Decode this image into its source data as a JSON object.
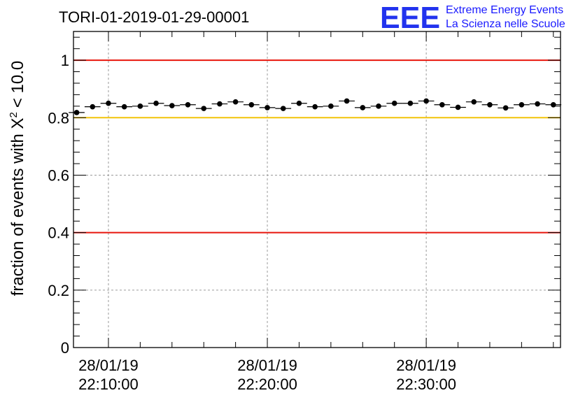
{
  "header": {
    "title": "TORI-01-2019-01-29-00001",
    "logo_text": "EEE",
    "logo_line1": "Extreme Energy Events",
    "logo_line2": "La Scienza nelle Scuole"
  },
  "colors": {
    "threshold_low": "#e8150c",
    "threshold_mid": "#f2c40a",
    "threshold_high": "#e8150c",
    "marker": "#000000",
    "grid": "#9a9a9a",
    "logo": "#2233ee"
  },
  "chart_data": {
    "type": "scatter",
    "title": "TORI-01-2019-01-29-00001",
    "xlabel": "",
    "ylabel": "fraction of events with X",
    "ylabel_sup": "2",
    "ylabel_suffix": "< 10.0",
    "ylim": [
      0,
      1.1
    ],
    "yticks": [
      {
        "value": 0,
        "label": "0"
      },
      {
        "value": 0.2,
        "label": "0.2"
      },
      {
        "value": 0.4,
        "label": "0.4"
      },
      {
        "value": 0.6,
        "label": "0.6"
      },
      {
        "value": 0.8,
        "label": "0.8"
      },
      {
        "value": 1.0,
        "label": "1"
      }
    ],
    "xlim_minutes": [
      7.8,
      38.45
    ],
    "xticks": [
      {
        "minute": 10,
        "date": "28/01/19",
        "time": "22:10:00"
      },
      {
        "minute": 20,
        "date": "28/01/19",
        "time": "22:20:00"
      },
      {
        "minute": 30,
        "date": "28/01/19",
        "time": "22:30:00"
      }
    ],
    "minor_xticks_minutes": [
      12,
      14,
      16,
      18,
      22,
      24,
      26,
      28,
      32,
      34,
      36,
      38
    ],
    "bin_width_minutes": 1.0,
    "reference_lines": [
      {
        "y": 1.0,
        "color_key": "threshold_high"
      },
      {
        "y": 0.8,
        "color_key": "threshold_mid"
      },
      {
        "y": 0.4,
        "color_key": "threshold_low"
      }
    ],
    "x_minutes": [
      8.0,
      9.0,
      10.0,
      11.0,
      12.0,
      13.0,
      14.0,
      15.0,
      16.0,
      17.0,
      18.0,
      19.0,
      20.0,
      21.0,
      22.0,
      23.0,
      24.0,
      25.0,
      26.0,
      27.0,
      28.0,
      29.0,
      30.0,
      31.0,
      32.0,
      33.0,
      34.0,
      35.0,
      36.0,
      37.0,
      38.0
    ],
    "values": [
      0.818,
      0.838,
      0.85,
      0.838,
      0.84,
      0.85,
      0.842,
      0.845,
      0.832,
      0.848,
      0.855,
      0.845,
      0.835,
      0.832,
      0.85,
      0.838,
      0.84,
      0.858,
      0.835,
      0.84,
      0.85,
      0.85,
      0.858,
      0.845,
      0.836,
      0.855,
      0.845,
      0.834,
      0.845,
      0.848,
      0.845
    ]
  }
}
